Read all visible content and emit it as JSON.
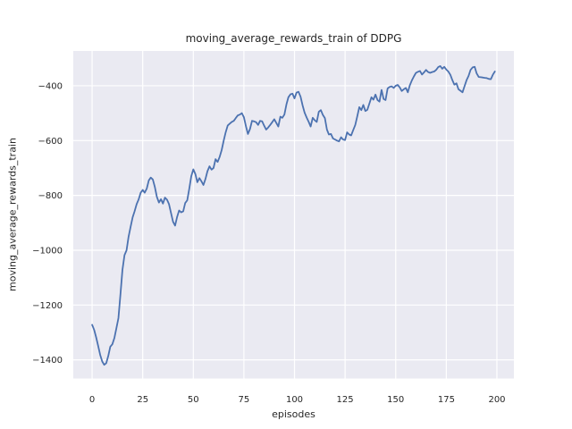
{
  "chart_data": {
    "type": "line",
    "title": "moving_average_rewards_train of DDPG",
    "xlabel": "episodes",
    "ylabel": "moving_average_rewards_train",
    "style": "seaborn-darkgrid",
    "grid": true,
    "legend": "none",
    "x_ticks": [
      0,
      25,
      50,
      75,
      100,
      125,
      150,
      175,
      200
    ],
    "x_tick_labels": [
      "0",
      "25",
      "50",
      "75",
      "100",
      "125",
      "150",
      "175",
      "200"
    ],
    "y_ticks": [
      -400,
      -600,
      -800,
      -1000,
      -1200,
      -1400
    ],
    "y_tick_labels": [
      "−400",
      "−600",
      "−800",
      "−1000",
      "−1200",
      "−1400"
    ],
    "xlim": [
      -9.3,
      208.4
    ],
    "ylim": [
      -1468,
      -273
    ],
    "colors": {
      "line": "#4C72B0",
      "axes_bg": "#EAEAF2",
      "grid": "#FFFFFF",
      "text": "#262626",
      "figure_bg": "#FFFFFF"
    },
    "series": [
      {
        "name": "moving_average_rewards_train",
        "x_start": 0,
        "x_step": 1,
        "y": [
          -1272,
          -1290,
          -1318,
          -1350,
          -1382,
          -1406,
          -1418,
          -1412,
          -1385,
          -1352,
          -1343,
          -1320,
          -1285,
          -1248,
          -1160,
          -1072,
          -1018,
          -1000,
          -952,
          -915,
          -880,
          -858,
          -832,
          -815,
          -790,
          -780,
          -790,
          -775,
          -745,
          -735,
          -742,
          -770,
          -805,
          -826,
          -814,
          -830,
          -808,
          -816,
          -832,
          -865,
          -896,
          -910,
          -878,
          -855,
          -862,
          -858,
          -828,
          -818,
          -775,
          -730,
          -705,
          -722,
          -752,
          -737,
          -748,
          -762,
          -740,
          -712,
          -694,
          -706,
          -700,
          -668,
          -678,
          -660,
          -635,
          -600,
          -570,
          -545,
          -538,
          -532,
          -528,
          -518,
          -508,
          -505,
          -500,
          -515,
          -548,
          -576,
          -558,
          -528,
          -530,
          -533,
          -543,
          -528,
          -530,
          -546,
          -560,
          -552,
          -543,
          -533,
          -522,
          -535,
          -549,
          -513,
          -517,
          -505,
          -468,
          -442,
          -431,
          -429,
          -446,
          -425,
          -422,
          -440,
          -472,
          -498,
          -516,
          -532,
          -549,
          -517,
          -526,
          -532,
          -495,
          -489,
          -506,
          -518,
          -560,
          -578,
          -576,
          -592,
          -596,
          -600,
          -603,
          -588,
          -596,
          -598,
          -570,
          -578,
          -581,
          -562,
          -543,
          -512,
          -478,
          -489,
          -470,
          -492,
          -488,
          -465,
          -442,
          -451,
          -432,
          -452,
          -458,
          -415,
          -448,
          -452,
          -410,
          -404,
          -402,
          -408,
          -400,
          -397,
          -406,
          -419,
          -413,
          -408,
          -424,
          -398,
          -380,
          -366,
          -353,
          -349,
          -346,
          -359,
          -351,
          -342,
          -350,
          -353,
          -350,
          -348,
          -342,
          -332,
          -328,
          -338,
          -331,
          -341,
          -348,
          -360,
          -380,
          -396,
          -391,
          -413,
          -418,
          -424,
          -402,
          -380,
          -364,
          -342,
          -333,
          -331,
          -355,
          -368,
          -369,
          -370,
          -371,
          -372,
          -375,
          -376,
          -360,
          -348
        ]
      }
    ]
  }
}
